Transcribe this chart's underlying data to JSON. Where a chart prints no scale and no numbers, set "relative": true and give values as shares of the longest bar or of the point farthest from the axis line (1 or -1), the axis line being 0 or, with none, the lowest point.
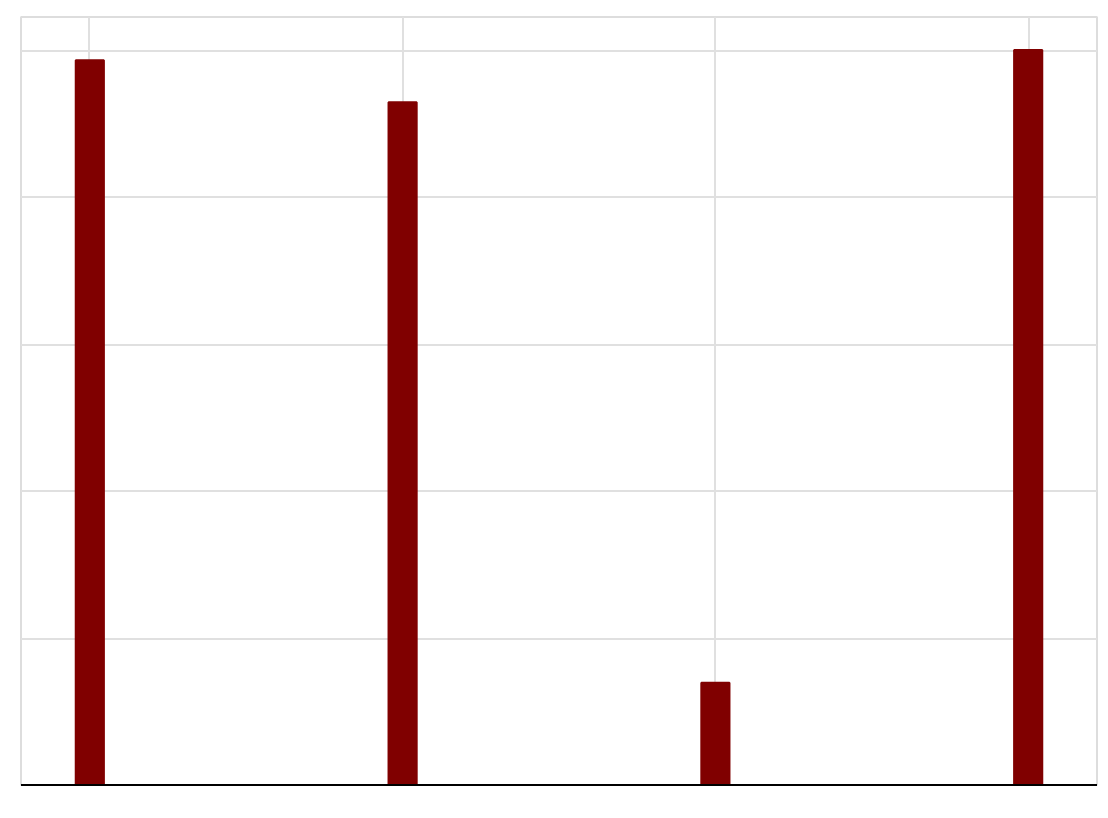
{
  "chart_data": {
    "type": "bar",
    "relative": true,
    "categories": [
      null,
      null,
      null,
      null
    ],
    "values": [
      0.986,
      0.929,
      0.139,
      1
    ],
    "color": "#800000",
    "grid": true
  }
}
